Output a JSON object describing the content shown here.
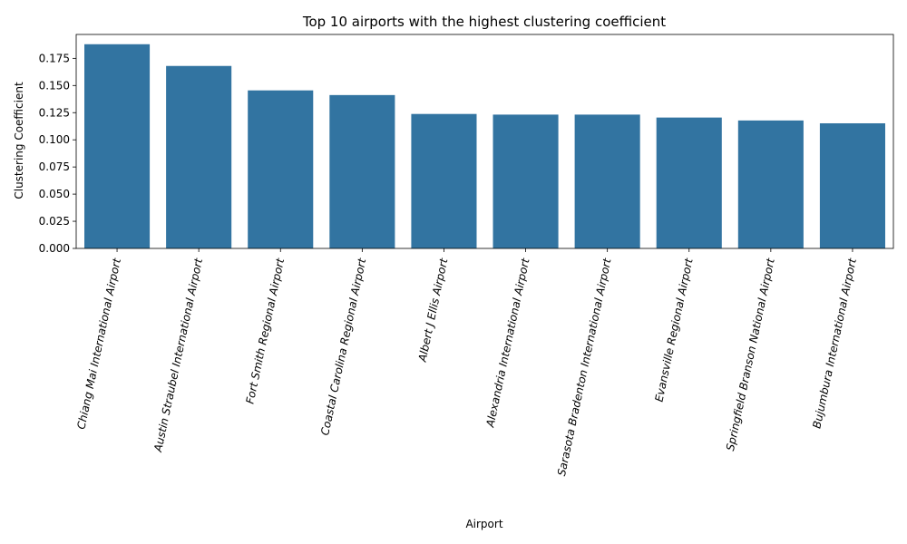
{
  "chart_data": {
    "type": "bar",
    "title": "Top 10 airports with the highest clustering coefficient",
    "xlabel": "Airport",
    "ylabel": "Clustering Coefficient",
    "categories": [
      "Chiang Mai International Airport",
      "Austin Straubel International Airport",
      "Fort Smith Regional Airport",
      "Coastal Carolina Regional Airport",
      "Albert J Ellis Airport",
      "Alexandria International Airport",
      "Sarasota Bradenton International Airport",
      "Evansville Regional Airport",
      "Springfield Branson National Airport",
      "Bujumbura International Airport"
    ],
    "values": [
      0.188,
      0.168,
      0.1455,
      0.1412,
      0.1238,
      0.1232,
      0.1232,
      0.1205,
      0.1178,
      0.1152
    ],
    "ylim": [
      0,
      0.197
    ],
    "yticks": [
      "0.000",
      "0.025",
      "0.050",
      "0.075",
      "0.100",
      "0.125",
      "0.150",
      "0.175"
    ],
    "bar_color": "#3274a1",
    "grid": false,
    "legend": "none"
  }
}
